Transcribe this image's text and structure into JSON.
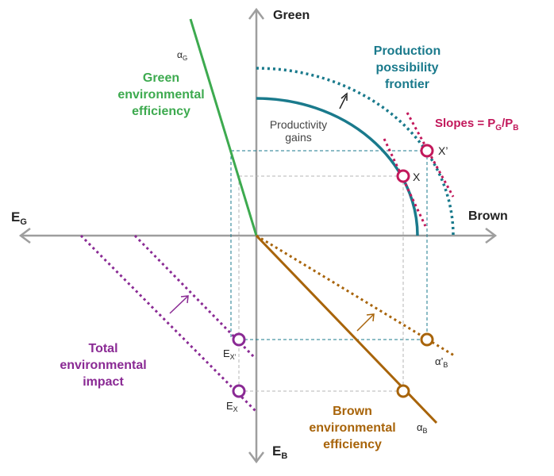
{
  "axes": {
    "green": "Green",
    "brown": "Brown",
    "eg": "E",
    "eg_sub": "G",
    "eb": "E",
    "eb_sub": "B"
  },
  "green_efficiency": {
    "line1": "Green",
    "line2": "environmental",
    "line3": "efficiency",
    "alpha": "α",
    "alpha_sub": "G"
  },
  "ppf": {
    "line1": "Production",
    "line2": "possibility",
    "line3": "frontier"
  },
  "productivity": {
    "line1": "Productivity",
    "line2": "gains"
  },
  "slopes": {
    "prefix": "Slopes = P",
    "sub1": "G",
    "mid": "/P",
    "sub2": "B"
  },
  "points": {
    "x": "X",
    "x_prime": "X’",
    "ex": "E",
    "ex_sub": "X",
    "exprime": "E",
    "exprime_sub": "X’",
    "alpha_b": "α",
    "alpha_b_sub": "B",
    "alpha_b_prime": "α’",
    "alpha_b_prime_sub": "B"
  },
  "total_impact": {
    "line1": "Total",
    "line2": "environmental",
    "line3": "impact"
  },
  "brown_efficiency": {
    "line1": "Brown",
    "line2": "environmental",
    "line3": "efficiency"
  },
  "colors": {
    "green": "#3daa4f",
    "teal": "#1a7a8c",
    "magenta": "#c2185b",
    "purple": "#8a2a94",
    "brown": "#a8640a",
    "axis": "#9e9e9e"
  }
}
